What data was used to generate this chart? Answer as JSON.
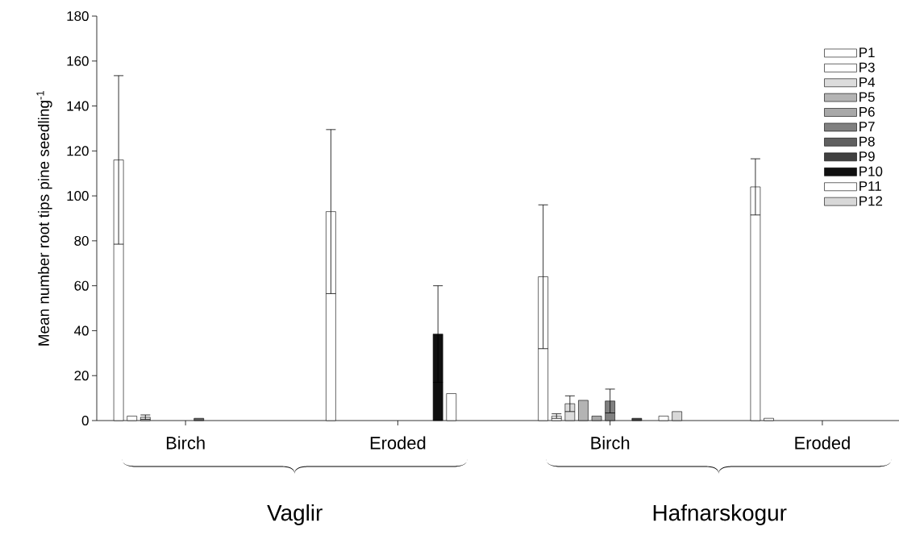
{
  "chart_data": {
    "type": "bar",
    "ylabel": "Mean number root tips pine seedling$^{-1}$",
    "categories": [
      "Birch",
      "Eroded",
      "Birch",
      "Eroded"
    ],
    "annotations": [
      "Vaglir",
      "Hafnarskogur"
    ],
    "ylim": [
      0,
      180
    ],
    "yticks": [
      0,
      20,
      40,
      60,
      80,
      100,
      120,
      140,
      160,
      180
    ],
    "legend": "top right",
    "grid": false,
    "series": [
      {
        "name": "P1",
        "color": "#ffffff",
        "values": [
          116,
          93,
          64,
          104
        ],
        "errors": [
          37.5,
          36.5,
          32,
          12.5
        ]
      },
      {
        "name": "P3",
        "color": "#ffffff",
        "values": [
          2,
          null,
          2,
          1
        ],
        "errors": [
          null,
          null,
          1,
          null
        ]
      },
      {
        "name": "P4",
        "color": "#dcdcdc",
        "values": [
          1.5,
          null,
          7.5,
          null
        ],
        "errors": [
          1,
          null,
          3.5,
          null
        ]
      },
      {
        "name": "P5",
        "color": "#b4b4b4",
        "values": [
          null,
          null,
          9,
          null
        ]
      },
      {
        "name": "P6",
        "color": "#a8a8a8",
        "values": [
          null,
          null,
          2,
          null
        ]
      },
      {
        "name": "P7",
        "color": "#808080",
        "values": [
          null,
          null,
          8.7,
          null
        ],
        "errors": [
          null,
          null,
          5.3,
          null
        ]
      },
      {
        "name": "P8",
        "color": "#606060",
        "values": [
          1,
          null,
          null,
          null
        ]
      },
      {
        "name": "P9",
        "color": "#404040",
        "values": [
          null,
          null,
          1,
          null
        ]
      },
      {
        "name": "P10",
        "color": "#101010",
        "values": [
          null,
          38.5,
          null,
          null
        ],
        "errors": [
          null,
          21.5,
          null,
          null
        ]
      },
      {
        "name": "P11",
        "color": "#ffffff",
        "values": [
          null,
          12,
          2,
          null
        ]
      },
      {
        "name": "P12",
        "color": "#d8d8d8",
        "values": [
          null,
          null,
          4,
          null
        ]
      }
    ]
  }
}
